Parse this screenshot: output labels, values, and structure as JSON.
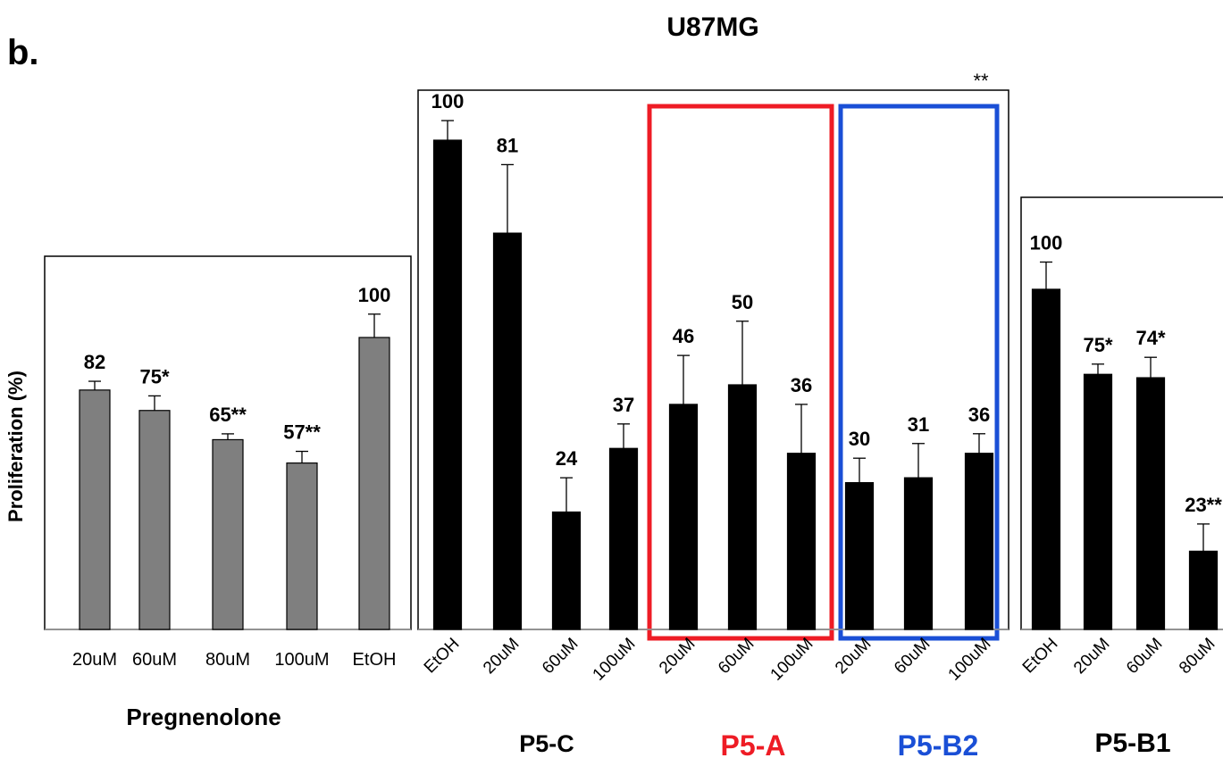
{
  "panel_label": "b.",
  "title": "U87MG",
  "y_axis_label": "Proliferation (%)",
  "top_annotation": "**",
  "colors": {
    "gray_bar": "#7f7f7f",
    "black_bar": "#000000",
    "p5a_box": "#ee1c25",
    "p5b2_box": "#1a4fd6",
    "p5a_label": "#ee1c25",
    "p5b2_label": "#1a4fd6"
  },
  "chart_data": [
    {
      "type": "bar",
      "group": "Pregnenolone",
      "xlabel": "Pregnenolone",
      "categories": [
        "20uM",
        "60uM",
        "80uM",
        "100uM",
        "EtOH"
      ],
      "values": [
        82,
        75,
        65,
        57,
        100
      ],
      "labels": [
        "82",
        "75*",
        "65**",
        "57**",
        "100"
      ],
      "errors": [
        3,
        5,
        2,
        4,
        8
      ],
      "ylim": [
        0,
        110
      ]
    },
    {
      "type": "bar",
      "xlabel": "P5-C",
      "categories": [
        "EtOH",
        "20uM",
        "60uM",
        "100uM"
      ],
      "values": [
        100,
        81,
        24,
        37
      ],
      "labels": [
        "100",
        "81",
        "24",
        "37"
      ],
      "errors": [
        4,
        14,
        7,
        5
      ],
      "ylim": [
        0,
        105
      ]
    },
    {
      "type": "bar",
      "xlabel": "P5-A",
      "categories": [
        "20uM",
        "60uM",
        "100uM"
      ],
      "values": [
        46,
        50,
        36
      ],
      "labels": [
        "46",
        "50",
        "36"
      ],
      "errors": [
        10,
        13,
        10
      ],
      "ylim": [
        0,
        105
      ]
    },
    {
      "type": "bar",
      "xlabel": "P5-B2",
      "categories": [
        "20uM",
        "60uM",
        "100uM"
      ],
      "values": [
        30,
        31,
        36
      ],
      "labels": [
        "30",
        "31",
        "36"
      ],
      "errors": [
        5,
        7,
        4
      ],
      "ylim": [
        0,
        105
      ]
    },
    {
      "type": "bar",
      "xlabel": "P5-B1",
      "categories": [
        "EtOH",
        "20uM",
        "60uM",
        "80uM"
      ],
      "values": [
        100,
        75,
        74,
        23
      ],
      "labels": [
        "100",
        "75*",
        "74*",
        "23**"
      ],
      "errors": [
        8,
        3,
        6,
        8
      ],
      "ylim": [
        0,
        110
      ]
    }
  ]
}
